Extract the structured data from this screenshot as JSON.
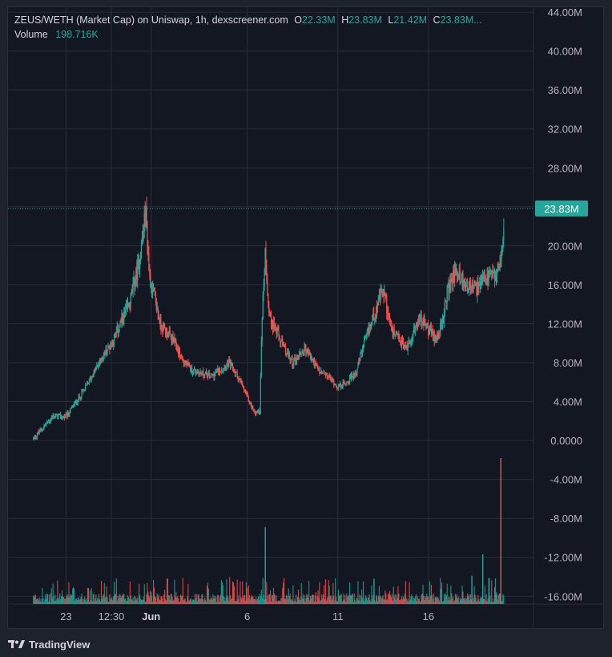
{
  "legend": {
    "title": "ZEUS/WETH (Market Cap) on Uniswap, 1h, dexscreener.com",
    "o_label": "O",
    "o_value": "22.33M",
    "h_label": "H",
    "h_value": "23.83M",
    "l_label": "L",
    "l_value": "21.42M",
    "c_label": "C",
    "c_value": "23.83M...",
    "volume_label": "Volume",
    "volume_value": "198.716K"
  },
  "footer": {
    "brand": "TradingView"
  },
  "colors": {
    "up": "#26a69a",
    "down": "#ef5350",
    "grid": "#2a2e39",
    "background": "#131722"
  },
  "chart_data": {
    "type": "candlestick",
    "symbol": "ZEUS/WETH",
    "interval": "1h",
    "last_price_label": "23.83M",
    "last_price": 23.83,
    "y_ticks": [
      {
        "value": 44,
        "label": "44.00M"
      },
      {
        "value": 40,
        "label": "40.00M"
      },
      {
        "value": 36,
        "label": "36.00M"
      },
      {
        "value": 32,
        "label": "32.00M"
      },
      {
        "value": 28,
        "label": "28.00M"
      },
      {
        "value": 20,
        "label": "20.00M"
      },
      {
        "value": 16,
        "label": "16.00M"
      },
      {
        "value": 12,
        "label": "12.00M"
      },
      {
        "value": 8,
        "label": "8.00M"
      },
      {
        "value": 4,
        "label": "4.00M"
      },
      {
        "value": 0,
        "label": "0.0000"
      },
      {
        "value": -4,
        "label": "-4.00M"
      },
      {
        "value": -8,
        "label": "-8.00M"
      },
      {
        "value": -12,
        "label": "-12.00M"
      },
      {
        "value": -16,
        "label": "-16.00M"
      }
    ],
    "x_ticks": [
      {
        "day": 1.0,
        "label": "23",
        "bold": false
      },
      {
        "day": 3.5,
        "label": "12:30",
        "bold": false
      },
      {
        "day": 5.7,
        "label": "Jun",
        "bold": true
      },
      {
        "day": 11.0,
        "label": "6",
        "bold": false
      },
      {
        "day": 16.0,
        "label": "11",
        "bold": false
      },
      {
        "day": 21.0,
        "label": "16",
        "bold": false
      }
    ],
    "y_range": [
      -16.8,
      44.5
    ],
    "x_range": [
      -2.2,
      26.8
    ],
    "price_path": [
      [
        -0.8,
        0.2
      ],
      [
        0.3,
        2.5
      ],
      [
        1.0,
        2.4
      ],
      [
        2.0,
        5.2
      ],
      [
        3.0,
        8.5
      ],
      [
        3.6,
        10.3
      ],
      [
        4.5,
        14.0
      ],
      [
        5.0,
        18.0
      ],
      [
        5.4,
        23.5
      ],
      [
        5.6,
        17.0
      ],
      [
        6.2,
        12.0
      ],
      [
        7.0,
        10.0
      ],
      [
        7.5,
        8.0
      ],
      [
        8.0,
        7.2
      ],
      [
        9.0,
        6.6
      ],
      [
        10.0,
        8.0
      ],
      [
        10.5,
        6.5
      ],
      [
        11.0,
        4.5
      ],
      [
        11.4,
        2.8
      ],
      [
        11.7,
        3.0
      ],
      [
        11.8,
        12.0
      ],
      [
        12.0,
        19.5
      ],
      [
        12.2,
        13.0
      ],
      [
        13.0,
        9.5
      ],
      [
        13.5,
        8.0
      ],
      [
        14.2,
        9.5
      ],
      [
        15.0,
        7.0
      ],
      [
        15.5,
        6.5
      ],
      [
        16.0,
        5.5
      ],
      [
        16.5,
        6.0
      ],
      [
        17.0,
        7.0
      ],
      [
        17.3,
        9.0
      ],
      [
        18.0,
        13.0
      ],
      [
        18.5,
        15.5
      ],
      [
        19.0,
        11.0
      ],
      [
        19.8,
        9.5
      ],
      [
        20.5,
        12.5
      ],
      [
        21.0,
        11.5
      ],
      [
        21.4,
        10.5
      ],
      [
        21.8,
        12.0
      ],
      [
        22.0,
        15.0
      ],
      [
        22.5,
        17.5
      ],
      [
        23.0,
        16.0
      ],
      [
        23.6,
        15.5
      ],
      [
        24.2,
        16.5
      ],
      [
        24.8,
        17.0
      ],
      [
        25.1,
        20.5
      ],
      [
        25.2,
        23.8
      ]
    ],
    "volume_spikes": [
      {
        "day": 12.0,
        "value": -8.9
      },
      {
        "day": 25.0,
        "value": -1.8
      },
      {
        "day": 18.0,
        "value": -14.2
      },
      {
        "day": 24.0,
        "value": -11.7
      },
      {
        "day": 23.4,
        "value": -13.9
      }
    ],
    "volume_baseline": -16.8
  }
}
